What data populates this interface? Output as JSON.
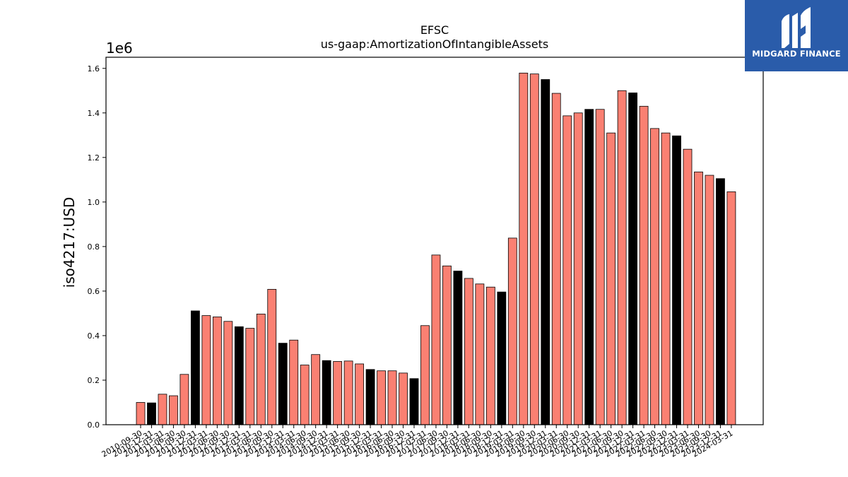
{
  "brand": {
    "name": "MIDGARD FINANCE"
  },
  "colors": {
    "primary_bar": "#fa8072",
    "alt_bar": "#000000",
    "logo_bg": "#2a5caa"
  },
  "chart_data": {
    "type": "bar",
    "title": "EFSC",
    "subtitle": "us-gaap:AmortizationOfIntangibleAssets",
    "ylabel": "iso4217:USD",
    "y_offset_label": "1e6",
    "ylim": [
      0,
      1.65
    ],
    "yticks": [
      "0.0",
      "0.2",
      "0.4",
      "0.6",
      "0.8",
      "1.0",
      "1.2",
      "1.4",
      "1.6"
    ],
    "categories": [
      "2010-09-30",
      "2010-12-31",
      "2011-03-31",
      "2011-06-30",
      "2011-09-30",
      "2011-12-31",
      "2012-03-31",
      "2012-06-30",
      "2012-09-30",
      "2012-12-31",
      "2013-03-31",
      "2013-06-30",
      "2013-09-30",
      "2013-12-31",
      "2014-03-31",
      "2014-06-30",
      "2014-09-30",
      "2014-12-31",
      "2015-03-31",
      "2015-06-30",
      "2015-09-30",
      "2015-12-31",
      "2016-03-31",
      "2016-06-30",
      "2016-09-30",
      "2016-12-31",
      "2017-03-31",
      "2017-06-30",
      "2017-09-30",
      "2017-12-31",
      "2018-03-31",
      "2018-06-30",
      "2018-09-30",
      "2018-12-31",
      "2019-03-31",
      "2019-06-30",
      "2019-09-30",
      "2019-12-31",
      "2020-03-31",
      "2020-06-30",
      "2020-09-30",
      "2020-12-31",
      "2021-03-31",
      "2021-06-30",
      "2021-09-30",
      "2021-12-31",
      "2022-03-31",
      "2022-06-30",
      "2022-09-30",
      "2022-12-31",
      "2023-03-31",
      "2023-06-30",
      "2023-09-30",
      "2023-12-31",
      "2024-03-31"
    ],
    "values": [
      0.1,
      0.098,
      0.137,
      0.13,
      0.226,
      0.511,
      0.49,
      0.484,
      0.464,
      0.44,
      0.433,
      0.497,
      0.608,
      0.366,
      0.38,
      0.268,
      0.315,
      0.288,
      0.284,
      0.286,
      0.273,
      0.248,
      0.242,
      0.242,
      0.232,
      0.207,
      0.445,
      0.762,
      0.713,
      0.69,
      0.657,
      0.632,
      0.618,
      0.596,
      0.838,
      1.579,
      1.575,
      1.55,
      1.488,
      1.387,
      1.4,
      1.416,
      1.416,
      1.31,
      1.5,
      1.49,
      1.43,
      1.33,
      1.31,
      1.297,
      1.237,
      1.135,
      1.12,
      1.105,
      1.046
    ],
    "highlight_quarter": "12-31",
    "grid": false,
    "legend": "none"
  }
}
